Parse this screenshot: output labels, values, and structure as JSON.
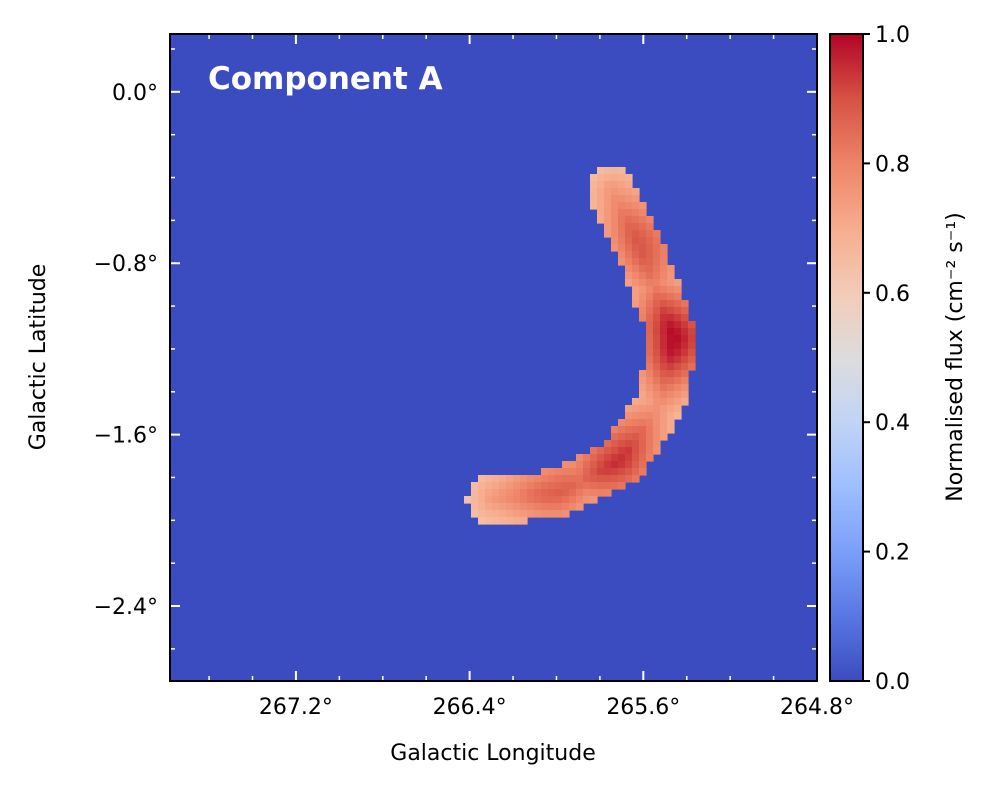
{
  "chart_data": {
    "type": "heatmap",
    "title": "Component A",
    "xlabel": "Galactic Longitude",
    "ylabel": "Galactic Latitude",
    "x_ticks": [
      {
        "value": 267.2,
        "label": "267.2°"
      },
      {
        "value": 266.4,
        "label": "266.4°"
      },
      {
        "value": 265.6,
        "label": "265.6°"
      },
      {
        "value": 264.8,
        "label": "264.8°"
      }
    ],
    "y_ticks": [
      {
        "value": 0.0,
        "label": "0.0°"
      },
      {
        "value": -0.8,
        "label": "−0.8°"
      },
      {
        "value": -1.6,
        "label": "−1.6°"
      },
      {
        "value": -2.4,
        "label": "−2.4°"
      }
    ],
    "xlim": [
      267.78,
      264.8
    ],
    "ylim": [
      -2.75,
      0.27
    ],
    "x_reversed": true,
    "colorbar": {
      "label": "Normalised flux (cm⁻² s⁻¹)",
      "ticks": [
        {
          "value": 0.0,
          "label": "0.0"
        },
        {
          "value": 0.2,
          "label": "0.2"
        },
        {
          "value": 0.4,
          "label": "0.4"
        },
        {
          "value": 0.6,
          "label": "0.6"
        },
        {
          "value": 0.8,
          "label": "0.8"
        },
        {
          "value": 1.0,
          "label": "1.0"
        }
      ],
      "range": [
        0,
        1
      ],
      "colormap": "coolwarm"
    },
    "background_value": 0.0,
    "structure": {
      "shape": "crescent arc",
      "spine_points_lon_lat": [
        [
          265.75,
          -0.45
        ],
        [
          265.62,
          -0.72
        ],
        [
          265.46,
          -1.15
        ],
        [
          265.52,
          -1.45
        ],
        [
          265.7,
          -1.72
        ],
        [
          266.0,
          -1.88
        ],
        [
          266.3,
          -1.9
        ]
      ],
      "half_width_deg": 0.11,
      "peaks": [
        {
          "lon": 265.44,
          "lat": -1.15,
          "value": 1.0
        },
        {
          "lon": 265.58,
          "lat": -0.7,
          "value": 0.9
        },
        {
          "lon": 265.72,
          "lat": -1.72,
          "value": 0.95
        },
        {
          "lon": 266.0,
          "lat": -1.84,
          "value": 0.88
        }
      ],
      "edge_value": 0.7
    },
    "grid": false
  }
}
